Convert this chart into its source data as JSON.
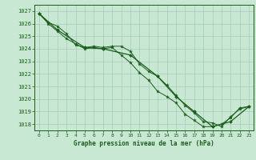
{
  "title": "Graphe pression niveau de la mer (hPa)",
  "bg_color": "#c8e8d4",
  "grid_color": "#a8ccb8",
  "line_color": "#1a5c1a",
  "xlim": [
    -0.5,
    23.5
  ],
  "ylim": [
    1017.5,
    1027.5
  ],
  "yticks": [
    1018,
    1019,
    1020,
    1021,
    1022,
    1023,
    1024,
    1025,
    1026,
    1027
  ],
  "xticks": [
    0,
    1,
    2,
    3,
    4,
    5,
    6,
    7,
    8,
    9,
    10,
    11,
    12,
    13,
    14,
    15,
    16,
    17,
    18,
    19,
    20,
    21,
    22,
    23
  ],
  "line1_x": [
    0,
    1,
    2,
    3,
    4,
    5,
    6,
    7,
    8,
    9,
    10,
    11,
    12,
    13,
    14,
    15,
    16,
    17,
    18,
    19,
    20,
    21,
    22,
    23
  ],
  "line1_y": [
    1026.8,
    1026.1,
    1025.8,
    1025.2,
    1024.3,
    1024.1,
    1024.2,
    1024.1,
    1024.2,
    1024.2,
    1023.8,
    1022.8,
    1022.2,
    1021.8,
    1021.1,
    1020.3,
    1019.5,
    1018.9,
    1018.2,
    1018.1,
    1017.8,
    1018.6,
    1019.2,
    1019.4
  ],
  "line2_x": [
    0,
    1,
    2,
    3,
    4,
    5,
    6,
    7,
    8,
    9,
    10,
    11,
    12,
    13,
    14,
    15,
    16,
    17,
    18,
    19,
    20,
    21,
    22,
    23
  ],
  "line2_y": [
    1026.8,
    1026.0,
    1025.4,
    1024.8,
    1024.4,
    1024.0,
    1024.1,
    1024.0,
    1024.1,
    1023.5,
    1022.9,
    1022.1,
    1021.5,
    1020.6,
    1020.2,
    1019.7,
    1018.8,
    1018.3,
    1017.8,
    1017.8,
    1018.0,
    1018.5,
    1019.3,
    1019.4
  ],
  "line3_x": [
    0,
    2,
    5,
    7,
    10,
    13,
    15,
    17,
    19,
    21,
    23
  ],
  "line3_y": [
    1026.8,
    1025.5,
    1024.1,
    1024.0,
    1023.5,
    1021.8,
    1020.2,
    1019.0,
    1017.8,
    1018.2,
    1019.4
  ]
}
